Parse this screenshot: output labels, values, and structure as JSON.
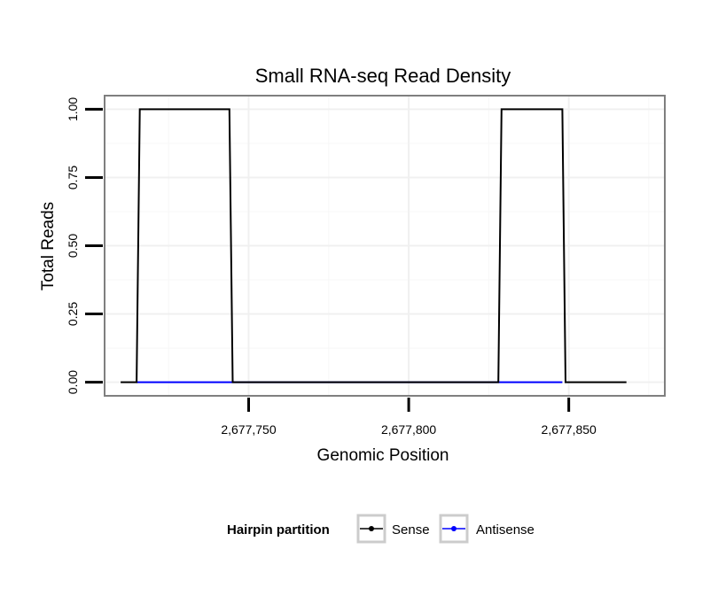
{
  "chart_data": {
    "type": "line",
    "title": "Small RNA-seq Read Density",
    "xlabel": "Genomic Position",
    "ylabel": "Total Reads",
    "xlim": [
      2677705,
      2677880
    ],
    "ylim": [
      -0.05,
      1.05
    ],
    "x_ticks": [
      2677750,
      2677800,
      2677850
    ],
    "x_tick_labels": [
      "2,677,750",
      "2,677,800",
      "2,677,850"
    ],
    "y_ticks": [
      0,
      0.25,
      0.5,
      0.75,
      1.0
    ],
    "y_tick_labels": [
      "0.00",
      "0.25",
      "0.50",
      "0.75",
      "1.00"
    ],
    "grid": true,
    "legend_position": "bottom",
    "legend_title": "Hairpin partition",
    "series": [
      {
        "name": "Sense",
        "color": "#000000",
        "x": [
          2677710,
          2677715,
          2677716,
          2677744,
          2677745,
          2677828,
          2677829,
          2677848,
          2677849,
          2677868
        ],
        "values": [
          0,
          0,
          1,
          1,
          0,
          0,
          1,
          1,
          0,
          0
        ]
      },
      {
        "name": "Antisense",
        "color": "#0000ff",
        "x": [
          2677715,
          2677744,
          2677829,
          2677848
        ],
        "values": [
          0,
          0,
          0,
          0
        ]
      }
    ]
  }
}
